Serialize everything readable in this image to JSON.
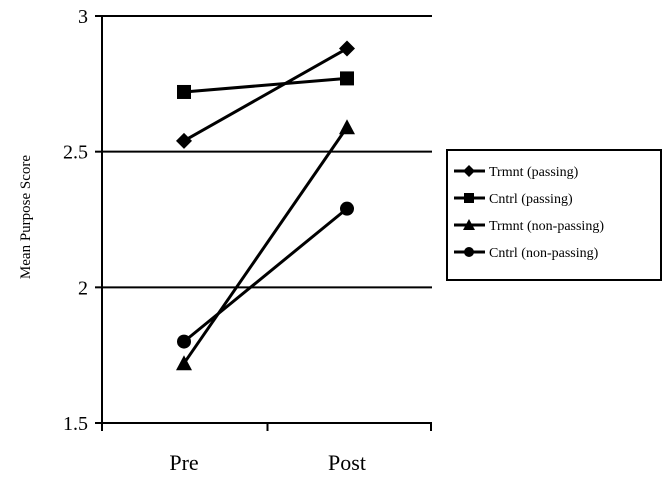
{
  "chart_data": {
    "type": "line",
    "categories": [
      "Pre",
      "Post"
    ],
    "ylabel": "Mean Purpose Score",
    "xlabel": "",
    "ylim": [
      1.5,
      3
    ],
    "yticks": [
      "1.5",
      "2",
      "2.5",
      "3"
    ],
    "grid": "horizontal",
    "legend_position": "right",
    "series": [
      {
        "name": "Trmnt (passing)",
        "marker": "diamond",
        "color": "#000000",
        "values": [
          2.54,
          2.88
        ]
      },
      {
        "name": "Cntrl (passing)",
        "marker": "square",
        "color": "#000000",
        "values": [
          2.72,
          2.77
        ]
      },
      {
        "name": "Trmnt (non-passing)",
        "marker": "triangle",
        "color": "#000000",
        "values": [
          1.72,
          2.59
        ]
      },
      {
        "name": "Cntrl (non-passing)",
        "marker": "circle",
        "color": "#000000",
        "values": [
          1.8,
          2.29
        ]
      }
    ]
  }
}
